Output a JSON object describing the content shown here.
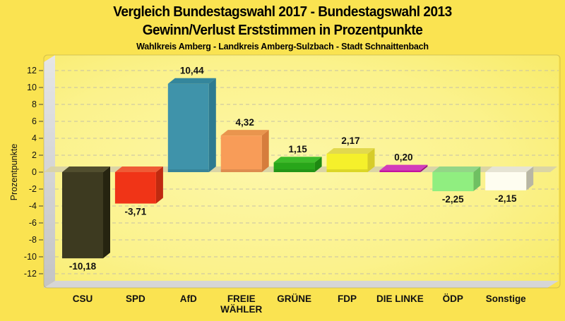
{
  "header": {
    "title": "Vergleich Bundestagswahl 2017 - Bundestagswahl 2013",
    "subtitle": "Gewinn/Verlust Erststimmen in Prozentpunkte",
    "caption": "Wahlkreis Amberg - Landkreis Amberg-Sulzbach - Stadt Schnaittenbach"
  },
  "chart_data": {
    "type": "bar",
    "style": "3d-columns",
    "title": "Vergleich Bundestagswahl 2017 - Bundestagswahl 2013",
    "subtitle": "Gewinn/Verlust Erststimmen in Prozentpunkte",
    "caption": "Wahlkreis Amberg - Landkreis Amberg-Sulzbach - Stadt Schnaittenbach",
    "xlabel": "",
    "ylabel": "Prozentpunkte",
    "ylim": [
      -13,
      13
    ],
    "ytick_step": 2,
    "yticks": [
      12,
      10,
      8,
      6,
      4,
      2,
      0,
      -2,
      -4,
      -6,
      -8,
      -10,
      -12
    ],
    "grid": "dashed-horizontal",
    "legend": "none",
    "categories": [
      "CSU",
      "SPD",
      "AfD",
      "FREIE WÄHLER",
      "GRÜNE",
      "FDP",
      "DIE LINKE",
      "ÖDP",
      "Sonstige"
    ],
    "values": [
      -10.18,
      -3.71,
      10.44,
      4.32,
      1.15,
      2.17,
      0.2,
      -2.25,
      -2.15
    ],
    "bars": [
      {
        "label_lines": [
          "CSU"
        ],
        "value": -10.18,
        "value_label": "-10,18",
        "color": {
          "front": "#3d3a20",
          "top": "#514e2e",
          "side": "#262410"
        }
      },
      {
        "label_lines": [
          "SPD"
        ],
        "value": -3.71,
        "value_label": "-3,71",
        "color": {
          "front": "#f03417",
          "top": "#ef5b35",
          "side": "#c02a10"
        }
      },
      {
        "label_lines": [
          "AfD"
        ],
        "value": 10.44,
        "value_label": "10,44",
        "color": {
          "front": "#3f93aa",
          "top": "#34869c",
          "side": "#2d7a90"
        }
      },
      {
        "label_lines": [
          "FREIE",
          "WÄHLER"
        ],
        "value": 4.32,
        "value_label": "4,32",
        "color": {
          "front": "#f89c58",
          "top": "#e9954e",
          "side": "#d67d3c"
        }
      },
      {
        "label_lines": [
          "GRÜNE"
        ],
        "value": 1.15,
        "value_label": "1,15",
        "color": {
          "front": "#28a61a",
          "top": "#3dbb2a",
          "side": "#1e8a12"
        }
      },
      {
        "label_lines": [
          "FDP"
        ],
        "value": 2.17,
        "value_label": "2,17",
        "color": {
          "front": "#f5f02b",
          "top": "#e2d94e",
          "side": "#d6cc2a"
        }
      },
      {
        "label_lines": [
          "DIE LINKE"
        ],
        "value": 0.2,
        "value_label": "0,20",
        "color": {
          "front": "#c211a0",
          "top": "#d23cbb",
          "side": "#99107e"
        }
      },
      {
        "label_lines": [
          "ÖDP"
        ],
        "value": -2.25,
        "value_label": "-2,25",
        "color": {
          "front": "#90ee80",
          "top": "#93d687",
          "side": "#6fc062"
        }
      },
      {
        "label_lines": [
          "Sonstige"
        ],
        "value": -2.15,
        "value_label": "-2,15",
        "color": {
          "front": "#fefdf0",
          "top": "#e6e4d4",
          "side": "#b8b6a4"
        }
      }
    ]
  },
  "colors": {
    "page_bg": "#fae351",
    "panel_inner": "#fdf7a8",
    "panel_mid": "#fbf28c",
    "panel_outer": "#f7e95f",
    "wall_light": "#e6e6e6",
    "wall_dark": "#c4c4c4",
    "floor": "#d6d6d6",
    "zero_plane": "#d9d3a6",
    "gridline": "#c6c1a6",
    "plot_border": "#b3a54a",
    "text": "#111111"
  }
}
